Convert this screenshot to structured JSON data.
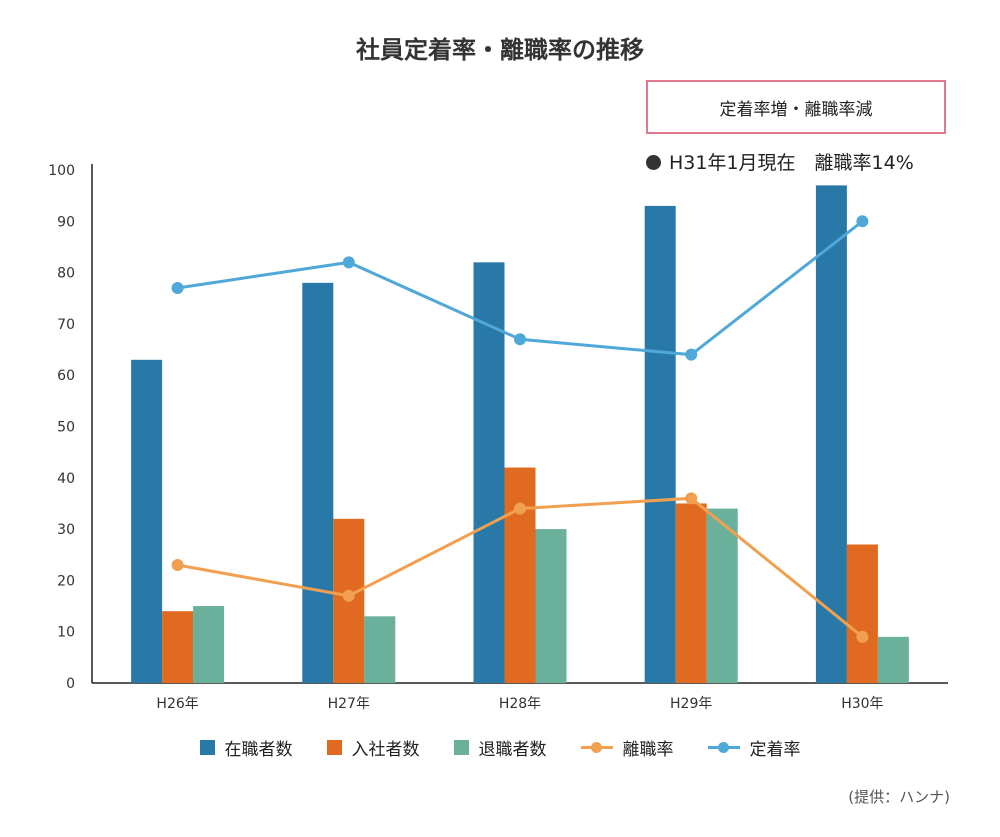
{
  "title": "社員定着率・離職率の推移",
  "callout": "定着率増・離職率減",
  "note": "H31年1月現在　離職率14%",
  "source": "(提供：ハンナ)",
  "colors": {
    "zaishoku": "#2878a8",
    "nyusha": "#e06b20",
    "taishoku": "#6ab09a",
    "rishoku": "#f0a050",
    "teichaku": "#50a8d8"
  },
  "chart_data": {
    "type": "bar",
    "categories": [
      "H26年",
      "H27年",
      "H28年",
      "H29年",
      "H30年"
    ],
    "ylim": [
      0,
      100
    ],
    "yticks": [
      0,
      10,
      20,
      30,
      40,
      50,
      60,
      70,
      80,
      90,
      100
    ],
    "series": [
      {
        "name": "在職者数",
        "kind": "bar",
        "values": [
          63,
          78,
          82,
          93,
          97
        ]
      },
      {
        "name": "入社者数",
        "kind": "bar",
        "values": [
          14,
          32,
          42,
          35,
          27
        ]
      },
      {
        "name": "退職者数",
        "kind": "bar",
        "values": [
          15,
          13,
          30,
          34,
          9
        ]
      },
      {
        "name": "離職率",
        "kind": "line",
        "values": [
          23,
          17,
          34,
          36,
          9
        ]
      },
      {
        "name": "定着率",
        "kind": "line",
        "values": [
          77,
          82,
          67,
          64,
          90
        ]
      }
    ],
    "grid": false,
    "legend": "bottom"
  }
}
